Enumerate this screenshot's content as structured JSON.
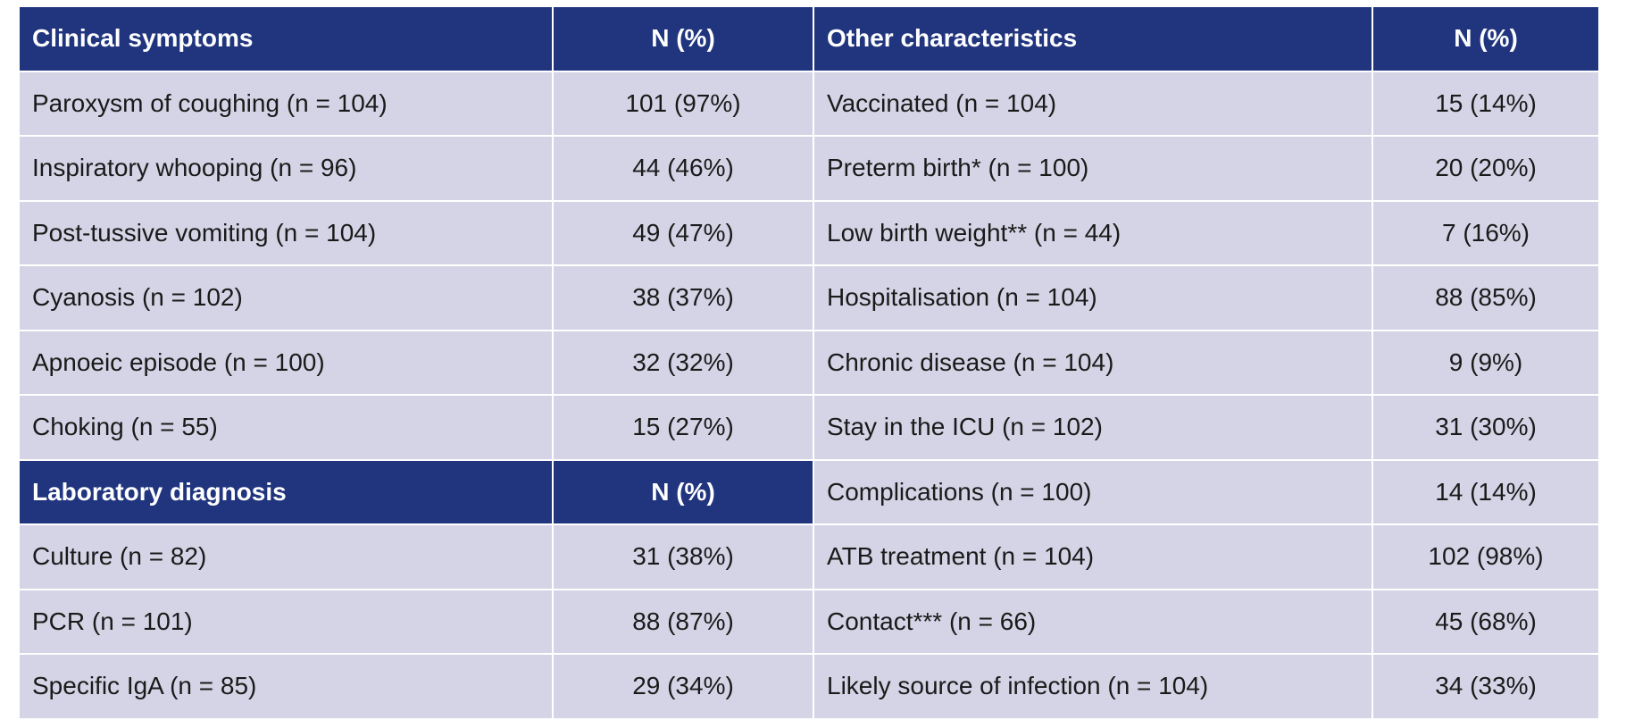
{
  "clinical": {
    "header": {
      "label": "Clinical symptoms",
      "value": "N (%)"
    },
    "rows": [
      {
        "label": "Paroxysm of coughing (n = 104)",
        "value": "101 (97%)"
      },
      {
        "label": "Inspiratory whooping (n = 96)",
        "value": "44 (46%)"
      },
      {
        "label": "Post-tussive vomiting (n = 104)",
        "value": "49 (47%)"
      },
      {
        "label": "Cyanosis (n = 102)",
        "value": "38 (37%)"
      },
      {
        "label": "Apnoeic episode (n = 100)",
        "value": "32 (32%)"
      },
      {
        "label": "Choking (n = 55)",
        "value": "15 (27%)"
      }
    ]
  },
  "laboratory": {
    "header": {
      "label": "Laboratory diagnosis",
      "value": "N (%)"
    },
    "rows": [
      {
        "label": "Culture (n = 82)",
        "value": "31 (38%)"
      },
      {
        "label": "PCR (n = 101)",
        "value": "88 (87%)"
      },
      {
        "label": "Specific IgA (n = 85)",
        "value": "29 (34%)"
      }
    ]
  },
  "other": {
    "header": {
      "label": "Other characteristics",
      "value": "N (%)"
    },
    "rows": [
      {
        "label": "Vaccinated (n = 104)",
        "value": "15 (14%)"
      },
      {
        "label": "Preterm birth* (n = 100)",
        "value": "20 (20%)"
      },
      {
        "label": "Low birth weight** (n = 44)",
        "value": "7 (16%)"
      },
      {
        "label": "Hospitalisation (n = 104)",
        "value": "88 (85%)"
      },
      {
        "label": "Chronic disease (n = 104)",
        "value": "9 (9%)"
      },
      {
        "label": "Stay in the ICU (n = 102)",
        "value": "31 (30%)"
      },
      {
        "label": "Complications (n = 100)",
        "value": "14 (14%)"
      },
      {
        "label": "ATB treatment (n = 104)",
        "value": "102 (98%)"
      },
      {
        "label": "Contact*** (n = 66)",
        "value": "45 (68%)"
      },
      {
        "label": "Likely source of infection (n = 104)",
        "value": "34 (33%)"
      }
    ]
  }
}
